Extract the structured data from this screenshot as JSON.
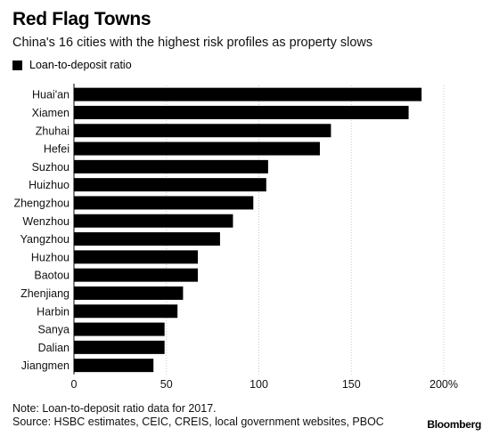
{
  "header": {
    "title": "Red Flag Towns",
    "subtitle": "China's 16 cities with the highest risk profiles as property slows"
  },
  "legend": {
    "label": "Loan-to-deposit ratio",
    "color": "#000000"
  },
  "footer": {
    "note": "Note: Loan-to-deposit ratio data for 2017.",
    "source": "Source: HSBC estimates, CEIC, CREIS, local government websites, PBOC",
    "brand": "Bloomberg"
  },
  "chart_data": {
    "type": "bar",
    "orientation": "horizontal",
    "title": "Red Flag Towns",
    "subtitle": "China's 16 cities with the highest risk profiles as property slows",
    "xlabel": "",
    "ylabel": "",
    "categories": [
      "Huai'an",
      "Xiamen",
      "Zhuhai",
      "Hefei",
      "Suzhou",
      "Huizhuo",
      "Zhengzhou",
      "Wenzhou",
      "Yangzhou",
      "Huzhou",
      "Baotou",
      "Zhenjiang",
      "Harbin",
      "Sanya",
      "Dalian",
      "Jiangmen"
    ],
    "series": [
      {
        "name": "Loan-to-deposit ratio",
        "color": "#000000",
        "values": [
          188,
          181,
          139,
          133,
          105,
          104,
          97,
          86,
          79,
          67,
          67,
          59,
          56,
          49,
          49,
          43
        ]
      }
    ],
    "xlim": [
      0,
      200
    ],
    "xticks": [
      0,
      50,
      100,
      150,
      200
    ],
    "xtick_labels": [
      "0",
      "50",
      "100",
      "150",
      "200%"
    ],
    "grid": true,
    "legend_position": "top-left"
  }
}
